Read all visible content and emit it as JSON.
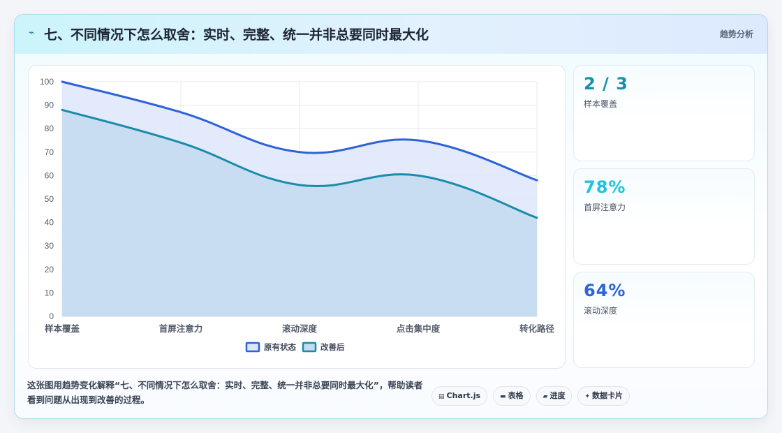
{
  "header": {
    "icon": "lightning-icon",
    "title": "七、不同情况下怎么取舍：实时、完整、统一并非总要同时最大化",
    "tag": "趋势分析"
  },
  "chart_data": {
    "type": "area",
    "categories": [
      "样本覆盖",
      "首屏注意力",
      "滚动深度",
      "点击集中度",
      "转化路径"
    ],
    "series": [
      {
        "name": "原有状态",
        "values": [
          100,
          87,
          70,
          75,
          58
        ],
        "color": "#2d62d8",
        "fill": "#dfe8fb"
      },
      {
        "name": "改善后",
        "values": [
          88,
          74,
          56,
          60,
          42
        ],
        "color": "#1a8cab",
        "fill": "#c5dcf0"
      }
    ],
    "ylim": [
      0,
      100
    ],
    "yticks": [
      0,
      10,
      20,
      30,
      40,
      50,
      60,
      70,
      80,
      90,
      100
    ],
    "legend": "bottom",
    "grid": true
  },
  "stats": [
    {
      "value": "2 / 3",
      "label": "样本覆盖",
      "color": "#1590a8"
    },
    {
      "value": "78%",
      "label": "首屏注意力",
      "color": "#22c3dc"
    },
    {
      "value": "64%",
      "label": "滚动深度",
      "color": "#2d62d8"
    }
  ],
  "footer": {
    "text": "这张图用趋势变化解释“七、不同情况下怎么取舍：实时、完整、统一并非总要同时最大化”，帮助读者看到问题从出现到改善的过程。"
  },
  "pills": [
    {
      "icon": "chart-icon",
      "glyph": "▤",
      "label": "Chart.js"
    },
    {
      "icon": "table-icon",
      "glyph": "▬",
      "label": "表格"
    },
    {
      "icon": "progress-icon",
      "glyph": "▰",
      "label": "进度"
    },
    {
      "icon": "sparkle-icon",
      "glyph": "✦",
      "label": "数据卡片"
    }
  ]
}
